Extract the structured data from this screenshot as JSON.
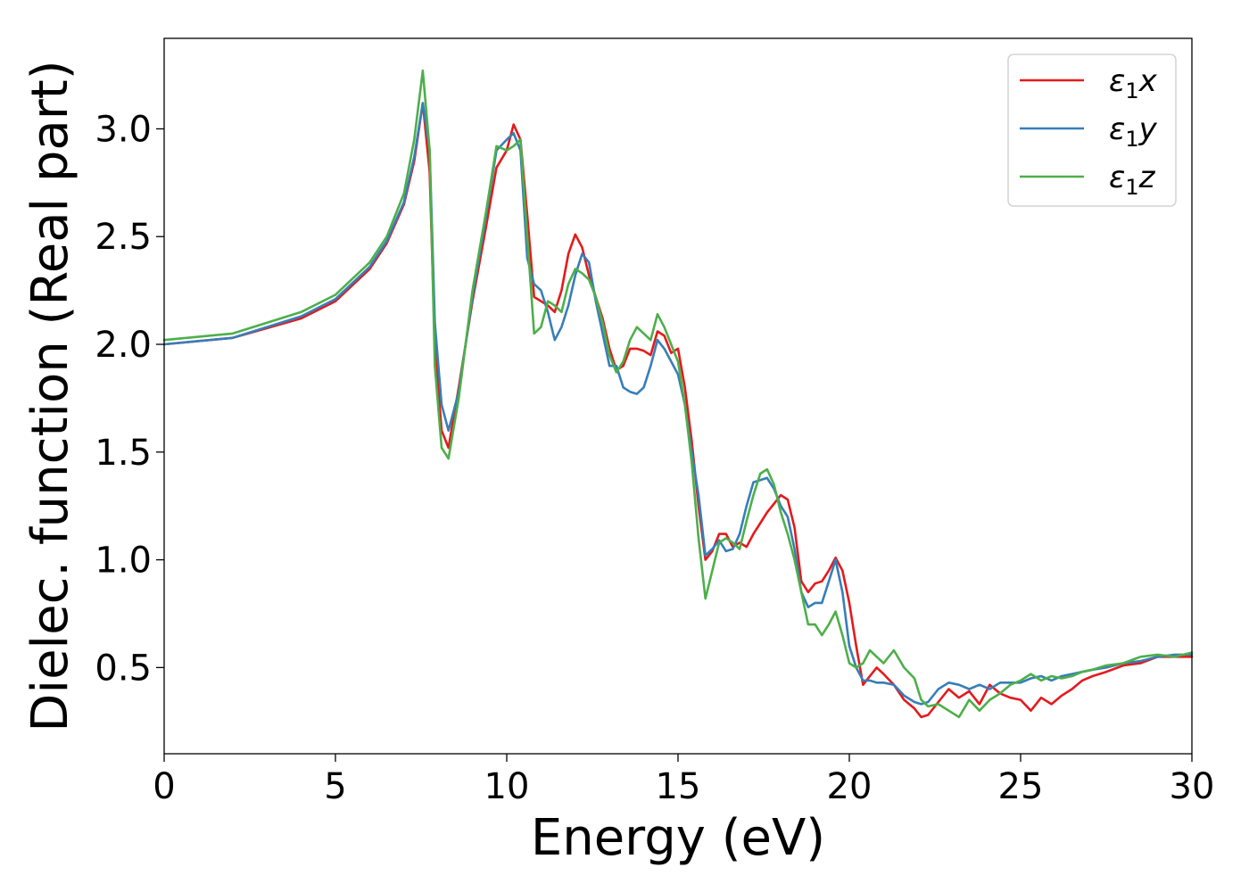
{
  "chart_data": {
    "type": "line",
    "title": "",
    "xlabel": "Energy (eV)",
    "ylabel": "Dielec. function (Real part)",
    "xlim": [
      0,
      30
    ],
    "ylim": [
      0.1,
      3.42
    ],
    "xticks": [
      0,
      5,
      10,
      15,
      20,
      25,
      30
    ],
    "xtick_labels": [
      "0",
      "5",
      "10",
      "15",
      "20",
      "25",
      "30"
    ],
    "yticks": [
      0.5,
      1.0,
      1.5,
      2.0,
      2.5,
      3.0
    ],
    "ytick_labels": [
      "0.5",
      "1.0",
      "1.5",
      "2.0",
      "2.5",
      "3.0"
    ],
    "grid": false,
    "legend_position": "top-right",
    "series": [
      {
        "name": "ε₁x",
        "legend_main": "ε",
        "legend_sub": "1",
        "legend_suffix": "x",
        "color": "#e41a1c",
        "x": [
          0,
          2,
          4,
          5,
          6,
          6.5,
          7,
          7.3,
          7.55,
          7.75,
          7.9,
          8.1,
          8.3,
          8.6,
          9,
          9.4,
          9.7,
          10,
          10.2,
          10.4,
          10.6,
          10.8,
          11,
          11.2,
          11.4,
          11.6,
          11.8,
          12.0,
          12.2,
          12.4,
          12.6,
          12.8,
          13.0,
          13.2,
          13.4,
          13.6,
          13.8,
          14.0,
          14.2,
          14.4,
          14.6,
          14.8,
          15.0,
          15.2,
          15.4,
          15.6,
          15.8,
          16.0,
          16.2,
          16.4,
          16.6,
          16.8,
          17.0,
          17.2,
          17.4,
          17.6,
          17.8,
          18.0,
          18.2,
          18.4,
          18.6,
          18.8,
          19.0,
          19.2,
          19.4,
          19.6,
          19.8,
          20.0,
          20.2,
          20.4,
          20.6,
          20.8,
          21.0,
          21.3,
          21.6,
          21.9,
          22.1,
          22.3,
          22.6,
          22.9,
          23.2,
          23.5,
          23.8,
          24.1,
          24.4,
          24.7,
          25.0,
          25.3,
          25.6,
          25.9,
          26.2,
          26.5,
          26.8,
          27.1,
          27.5,
          28,
          28.5,
          29,
          29.5,
          30
        ],
        "y": [
          2.0,
          2.03,
          2.12,
          2.2,
          2.35,
          2.47,
          2.65,
          2.85,
          3.12,
          2.8,
          2.0,
          1.6,
          1.52,
          1.8,
          2.2,
          2.55,
          2.82,
          2.9,
          3.02,
          2.95,
          2.6,
          2.22,
          2.2,
          2.18,
          2.15,
          2.25,
          2.42,
          2.51,
          2.45,
          2.32,
          2.22,
          2.12,
          1.98,
          1.88,
          1.9,
          1.98,
          1.98,
          1.97,
          1.95,
          2.06,
          2.04,
          1.96,
          1.98,
          1.8,
          1.55,
          1.25,
          1.0,
          1.04,
          1.12,
          1.12,
          1.06,
          1.08,
          1.06,
          1.12,
          1.17,
          1.22,
          1.26,
          1.3,
          1.28,
          1.15,
          0.9,
          0.85,
          0.89,
          0.9,
          0.95,
          1.01,
          0.95,
          0.8,
          0.6,
          0.42,
          0.46,
          0.5,
          0.47,
          0.42,
          0.35,
          0.31,
          0.27,
          0.28,
          0.34,
          0.4,
          0.36,
          0.39,
          0.33,
          0.42,
          0.38,
          0.36,
          0.35,
          0.3,
          0.36,
          0.33,
          0.37,
          0.4,
          0.44,
          0.46,
          0.48,
          0.51,
          0.52,
          0.55,
          0.55,
          0.55
        ]
      },
      {
        "name": "ε₁y",
        "legend_main": "ε",
        "legend_sub": "1",
        "legend_suffix": "y",
        "color": "#377eb8",
        "x": [
          0,
          2,
          4,
          5,
          6,
          6.5,
          7,
          7.3,
          7.55,
          7.75,
          7.9,
          8.1,
          8.3,
          8.6,
          9,
          9.4,
          9.7,
          10,
          10.2,
          10.4,
          10.6,
          10.8,
          11,
          11.2,
          11.4,
          11.6,
          11.8,
          12.0,
          12.2,
          12.4,
          12.6,
          12.8,
          13.0,
          13.2,
          13.4,
          13.6,
          13.8,
          14.0,
          14.2,
          14.4,
          14.6,
          14.8,
          15.0,
          15.2,
          15.4,
          15.6,
          15.8,
          16.0,
          16.2,
          16.4,
          16.6,
          16.8,
          17.0,
          17.2,
          17.4,
          17.6,
          17.8,
          18.0,
          18.2,
          18.4,
          18.6,
          18.8,
          19.0,
          19.2,
          19.4,
          19.6,
          19.8,
          20.0,
          20.2,
          20.4,
          20.6,
          20.8,
          21.0,
          21.3,
          21.6,
          21.9,
          22.1,
          22.3,
          22.6,
          22.9,
          23.2,
          23.5,
          23.8,
          24.1,
          24.4,
          24.7,
          25.0,
          25.3,
          25.6,
          25.9,
          26.2,
          26.5,
          26.8,
          27.1,
          27.5,
          28,
          28.5,
          29,
          29.5,
          30
        ],
        "y": [
          2.0,
          2.03,
          2.13,
          2.21,
          2.36,
          2.48,
          2.66,
          2.87,
          3.12,
          2.9,
          2.1,
          1.72,
          1.6,
          1.78,
          2.22,
          2.6,
          2.9,
          2.95,
          2.98,
          2.9,
          2.4,
          2.28,
          2.25,
          2.15,
          2.02,
          2.08,
          2.18,
          2.32,
          2.42,
          2.38,
          2.2,
          2.05,
          1.9,
          1.9,
          1.8,
          1.78,
          1.77,
          1.8,
          1.9,
          2.02,
          1.98,
          1.92,
          1.86,
          1.72,
          1.5,
          1.3,
          1.02,
          1.05,
          1.09,
          1.04,
          1.05,
          1.12,
          1.25,
          1.36,
          1.37,
          1.38,
          1.33,
          1.25,
          1.2,
          1.05,
          0.85,
          0.78,
          0.8,
          0.8,
          0.9,
          1.0,
          0.85,
          0.6,
          0.5,
          0.44,
          0.44,
          0.43,
          0.43,
          0.42,
          0.37,
          0.34,
          0.33,
          0.34,
          0.4,
          0.43,
          0.42,
          0.4,
          0.42,
          0.4,
          0.43,
          0.43,
          0.43,
          0.45,
          0.46,
          0.44,
          0.46,
          0.47,
          0.48,
          0.49,
          0.5,
          0.52,
          0.53,
          0.55,
          0.56,
          0.56
        ]
      },
      {
        "name": "ε₁z",
        "legend_main": "ε",
        "legend_sub": "1",
        "legend_suffix": "z",
        "color": "#4daf4a",
        "x": [
          0,
          2,
          4,
          5,
          6,
          6.5,
          7,
          7.3,
          7.55,
          7.75,
          7.9,
          8.1,
          8.3,
          8.6,
          9,
          9.4,
          9.7,
          10,
          10.2,
          10.4,
          10.6,
          10.8,
          11,
          11.2,
          11.4,
          11.6,
          11.8,
          12.0,
          12.2,
          12.4,
          12.6,
          12.8,
          13.0,
          13.2,
          13.4,
          13.6,
          13.8,
          14.0,
          14.2,
          14.4,
          14.6,
          14.8,
          15.0,
          15.2,
          15.4,
          15.6,
          15.8,
          16.0,
          16.2,
          16.4,
          16.6,
          16.8,
          17.0,
          17.2,
          17.4,
          17.6,
          17.8,
          18.0,
          18.2,
          18.4,
          18.6,
          18.8,
          19.0,
          19.2,
          19.4,
          19.6,
          19.8,
          20.0,
          20.2,
          20.4,
          20.6,
          20.8,
          21.0,
          21.3,
          21.6,
          21.9,
          22.1,
          22.3,
          22.6,
          22.9,
          23.2,
          23.5,
          23.8,
          24.1,
          24.4,
          24.7,
          25.0,
          25.3,
          25.6,
          25.9,
          26.2,
          26.5,
          26.8,
          27.1,
          27.5,
          28,
          28.5,
          29,
          29.5,
          30
        ],
        "y": [
          2.02,
          2.05,
          2.15,
          2.23,
          2.38,
          2.5,
          2.7,
          2.95,
          3.27,
          2.9,
          1.9,
          1.52,
          1.47,
          1.75,
          2.25,
          2.62,
          2.92,
          2.9,
          2.92,
          2.95,
          2.5,
          2.05,
          2.08,
          2.2,
          2.18,
          2.15,
          2.28,
          2.35,
          2.33,
          2.3,
          2.22,
          2.1,
          1.95,
          1.87,
          1.92,
          2.02,
          2.08,
          2.05,
          2.02,
          2.14,
          2.08,
          2.0,
          1.92,
          1.72,
          1.45,
          1.1,
          0.82,
          0.95,
          1.08,
          1.1,
          1.08,
          1.05,
          1.18,
          1.3,
          1.4,
          1.42,
          1.35,
          1.22,
          1.12,
          1.0,
          0.85,
          0.7,
          0.7,
          0.65,
          0.7,
          0.76,
          0.65,
          0.52,
          0.5,
          0.52,
          0.58,
          0.55,
          0.52,
          0.58,
          0.5,
          0.45,
          0.35,
          0.32,
          0.33,
          0.3,
          0.27,
          0.35,
          0.3,
          0.35,
          0.38,
          0.42,
          0.44,
          0.47,
          0.44,
          0.46,
          0.45,
          0.46,
          0.48,
          0.49,
          0.51,
          0.52,
          0.55,
          0.56,
          0.55,
          0.57
        ]
      }
    ]
  }
}
